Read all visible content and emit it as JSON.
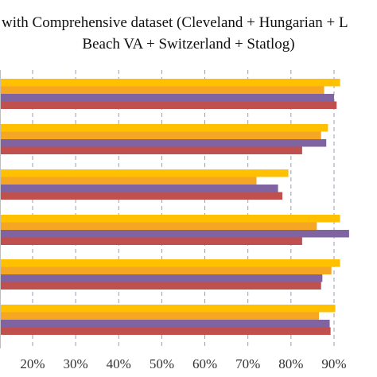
{
  "chart_data": {
    "type": "bar",
    "orientation": "horizontal",
    "title_lines": [
      "with Comprehensive dataset (Cleveland + Hungarian + L",
      "Beach VA + Switzerland + Statlog)"
    ],
    "xlabel": "",
    "ylabel": "",
    "xlim": [
      0,
      1
    ],
    "x_ticks": [
      "20%",
      "30%",
      "40%",
      "50%",
      "60%",
      "70%",
      "80%",
      "90%"
    ],
    "x_tick_values": [
      0.2,
      0.3,
      0.4,
      0.5,
      0.6,
      0.7,
      0.8,
      0.9
    ],
    "grid": "vertical dashed",
    "legend": "none visible",
    "groups": 6,
    "series": [
      {
        "color": "#FFC000",
        "values": [
          0.914,
          0.886,
          0.794,
          0.914,
          0.914,
          0.903
        ]
      },
      {
        "color": "#F5A623",
        "values": [
          0.877,
          0.87,
          0.72,
          0.86,
          0.894,
          0.865
        ]
      },
      {
        "color": "#8064A2",
        "values": [
          0.9,
          0.882,
          0.77,
          0.935,
          0.873,
          0.89
        ]
      },
      {
        "color": "#C0504D",
        "values": [
          0.906,
          0.826,
          0.78,
          0.826,
          0.87,
          0.892
        ]
      }
    ]
  }
}
